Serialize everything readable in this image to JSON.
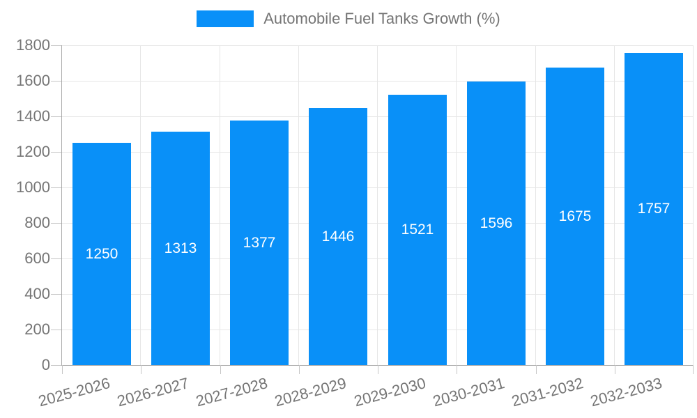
{
  "legend": {
    "label": "Automobile Fuel Tanks Growth (%)"
  },
  "chart_data": {
    "type": "bar",
    "title": "Automobile Fuel Tanks Growth (%)",
    "categories": [
      "2025-2026",
      "2026-2027",
      "2027-2028",
      "2028-2029",
      "2029-2030",
      "2030-2031",
      "2031-2032",
      "2032-2033"
    ],
    "values": [
      1250,
      1313,
      1377,
      1446,
      1521,
      1596,
      1675,
      1757
    ],
    "bar_value_labels": [
      "1250",
      "1313",
      "1377",
      "1446",
      "1521",
      "1596",
      "1675",
      "1757"
    ],
    "xlabel": "",
    "ylabel": "",
    "ylim": [
      0,
      1800
    ],
    "y_tick_step": 200,
    "y_ticks": [
      0,
      200,
      400,
      600,
      800,
      1000,
      1200,
      1400,
      1600,
      1800
    ],
    "grid": true,
    "legend_position": "top-center",
    "x_label_rotation_deg": -15
  },
  "colors": {
    "background": "#ffffff",
    "bar": "#0990f8",
    "grid": "#e6e6e6",
    "axis": "#a9a9a9",
    "tick": "#c6c6c6",
    "text": "#757575",
    "bar_label": "#ffffff"
  }
}
